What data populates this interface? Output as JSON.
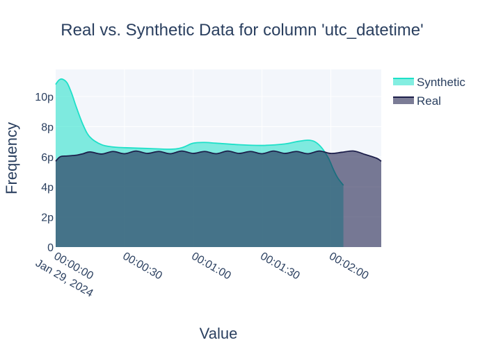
{
  "chart_data": {
    "type": "area",
    "title": "Real vs. Synthetic Data for column 'utc_datetime'",
    "xlabel": "Value",
    "ylabel": "Frequency",
    "x_unit": "seconds after 00:00:00 Jan 29, 2024",
    "xlim": [
      0,
      142
    ],
    "ylim": [
      0,
      11.8
    ],
    "y_unit": "p",
    "x_ticks": [
      {
        "value": 0,
        "label": "00:00:00",
        "sublabel": "Jan 29, 2024"
      },
      {
        "value": 30,
        "label": "00:00:30",
        "sublabel": ""
      },
      {
        "value": 60,
        "label": "00:01:00",
        "sublabel": ""
      },
      {
        "value": 90,
        "label": "00:01:30",
        "sublabel": ""
      },
      {
        "value": 120,
        "label": "00:02:00",
        "sublabel": ""
      }
    ],
    "y_ticks": [
      {
        "value": 0,
        "label": "0"
      },
      {
        "value": 2,
        "label": "2p"
      },
      {
        "value": 4,
        "label": "4p"
      },
      {
        "value": 6,
        "label": "6p"
      },
      {
        "value": 8,
        "label": "8p"
      },
      {
        "value": 10,
        "label": "10p"
      }
    ],
    "grid": true,
    "legend_position": "top-right",
    "series": [
      {
        "name": "Synthetic",
        "color": "#1ee0c8",
        "fill": "rgba(30,224,200,0.55)",
        "x": [
          0,
          1.5,
          3,
          5,
          7,
          9,
          12,
          15,
          20,
          25,
          30,
          40,
          50,
          55,
          60,
          65,
          70,
          80,
          90,
          100,
          105,
          110,
          113,
          116,
          119,
          121,
          123,
          125.5
        ],
        "y": [
          10.8,
          11.1,
          11.15,
          10.9,
          10.2,
          9.3,
          8.1,
          7.3,
          6.8,
          6.65,
          6.6,
          6.55,
          6.5,
          6.6,
          6.9,
          6.95,
          6.9,
          6.8,
          6.75,
          6.85,
          7.0,
          7.1,
          7.0,
          6.6,
          5.9,
          5.2,
          4.6,
          4.1
        ]
      },
      {
        "name": "Real",
        "color": "#1c1e4a",
        "fill": "rgba(28,30,74,0.58)",
        "x": [
          0,
          2,
          5,
          9,
          12,
          15,
          20,
          25,
          30,
          35,
          40,
          45,
          50,
          55,
          60,
          65,
          70,
          75,
          80,
          85,
          90,
          95,
          100,
          105,
          110,
          115,
          120,
          125,
          130,
          135,
          140,
          142
        ],
        "y": [
          5.7,
          6.0,
          6.05,
          6.1,
          6.2,
          6.32,
          6.18,
          6.35,
          6.2,
          6.38,
          6.22,
          6.35,
          6.2,
          6.38,
          6.22,
          6.35,
          6.2,
          6.38,
          6.22,
          6.35,
          6.2,
          6.38,
          6.22,
          6.35,
          6.2,
          6.38,
          6.22,
          6.3,
          6.38,
          6.15,
          5.9,
          5.7
        ]
      }
    ]
  }
}
